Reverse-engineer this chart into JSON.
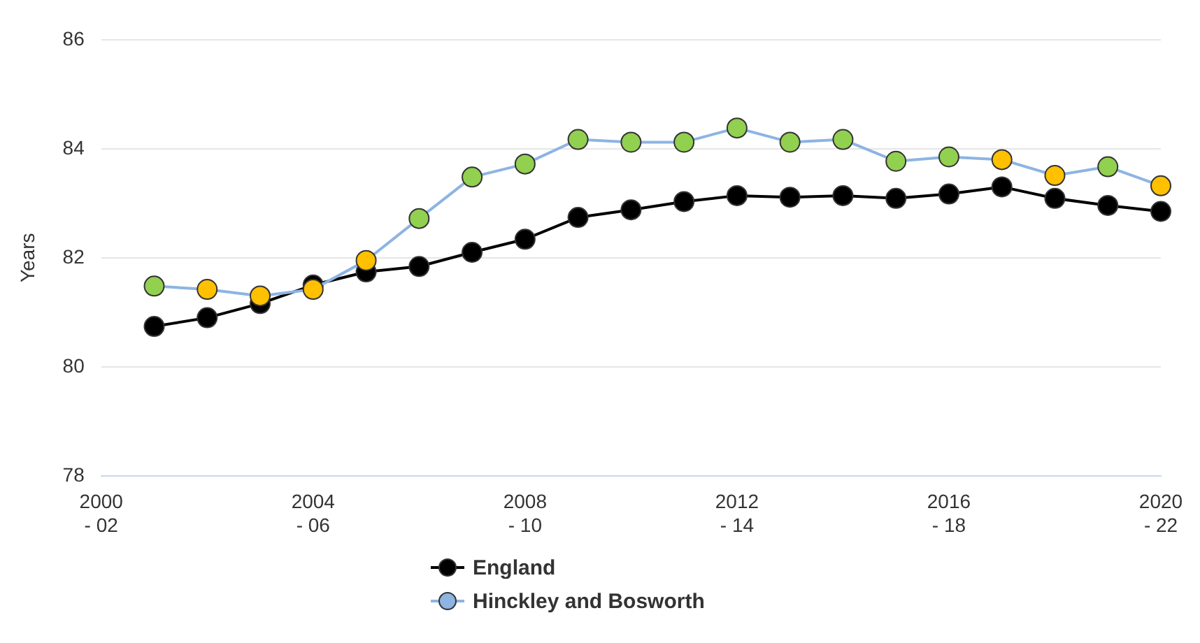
{
  "chart_data": {
    "type": "line",
    "ylabel": "Years",
    "categories": [
      "2000 - 02",
      null,
      null,
      null,
      "2004 - 06",
      null,
      null,
      null,
      "2008 - 10",
      null,
      null,
      null,
      "2012 - 14",
      null,
      null,
      null,
      "2016 - 18",
      null,
      null,
      null,
      "2020 - 22"
    ],
    "series": [
      {
        "name": "England",
        "color": "#000000",
        "values": [
          null,
          80.74,
          80.9,
          81.16,
          81.5,
          81.74,
          81.84,
          82.1,
          82.34,
          82.74,
          82.88,
          83.03,
          83.14,
          83.11,
          83.14,
          83.09,
          83.17,
          83.3,
          83.09,
          82.96,
          82.85
        ]
      },
      {
        "name": "Hinckley and Bosworth",
        "color": "#8db4e2",
        "values": [
          null,
          81.48,
          81.42,
          81.3,
          81.42,
          81.95,
          82.72,
          83.48,
          83.72,
          84.17,
          84.12,
          84.12,
          84.38,
          84.12,
          84.17,
          83.77,
          83.85,
          83.8,
          83.51,
          83.67,
          83.32
        ],
        "colors": [
          null,
          "#92d050",
          "#ffc000",
          "#ffc000",
          "#ffc000",
          "#ffc000",
          "#92d050",
          "#92d050",
          "#92d050",
          "#92d050",
          "#92d050",
          "#92d050",
          "#92d050",
          "#92d050",
          "#92d050",
          "#92d050",
          "#92d050",
          "#ffc000",
          "#ffc000",
          "#92d050",
          "#ffc000"
        ]
      }
    ],
    "ylim": [
      78,
      86
    ],
    "yticks": [
      78,
      80,
      82,
      84,
      86
    ],
    "grid": "y",
    "legend": "bottom",
    "marker": "circle",
    "line_style": "solid"
  }
}
